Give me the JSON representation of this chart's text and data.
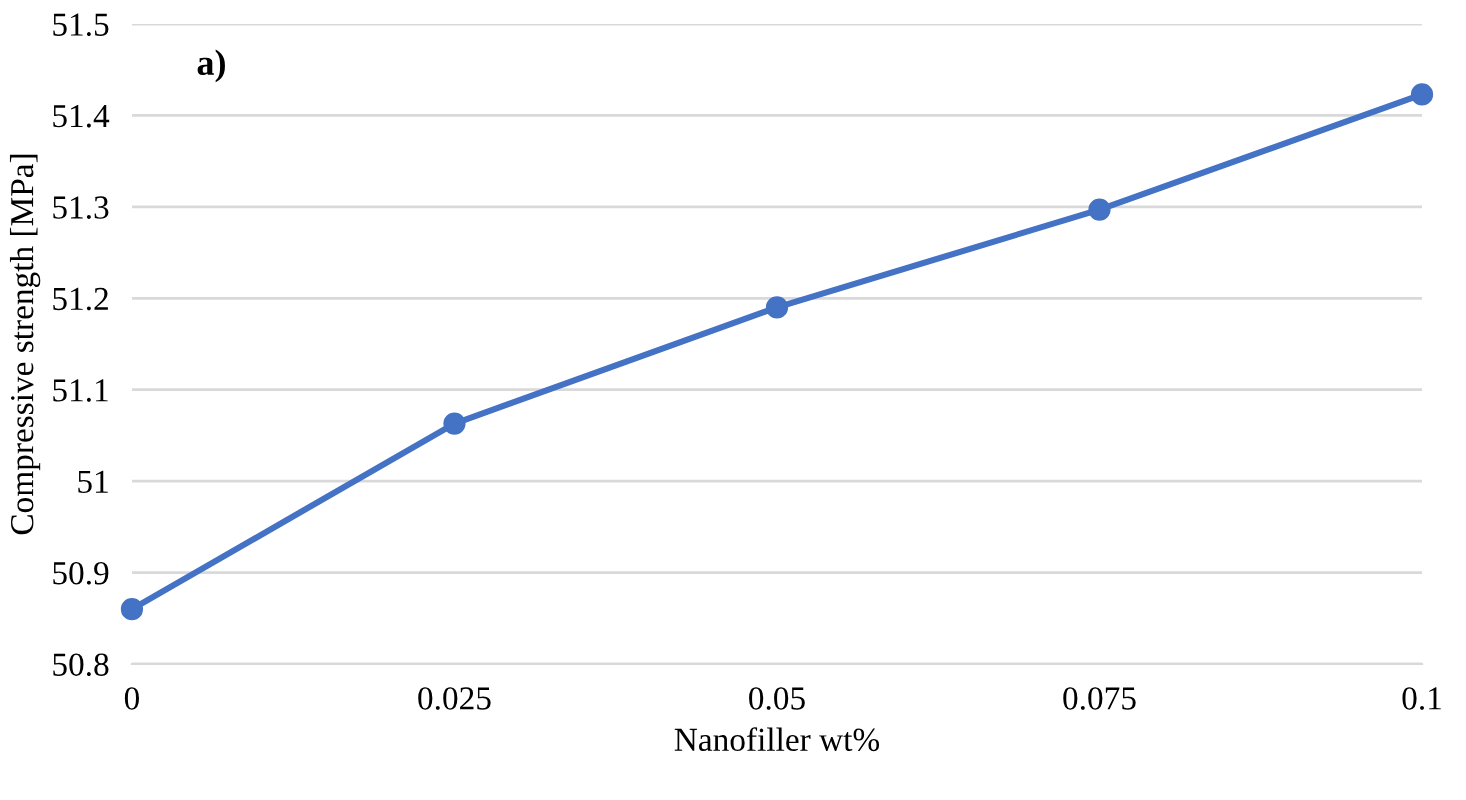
{
  "chart_data": {
    "type": "line",
    "xlabel": "Nanofiller wt%",
    "ylabel": "Compressive strength [MPa]",
    "annotations": [
      "a)"
    ],
    "x": [
      0,
      0.025,
      0.05,
      0.075,
      0.1
    ],
    "series": [
      {
        "color": "#4472c4",
        "values": [
          50.86,
          51.063,
          51.19,
          51.297,
          51.423
        ]
      }
    ],
    "xlim": [
      0,
      0.1
    ],
    "xticks": [
      0,
      0.025,
      0.05,
      0.075,
      0.1
    ],
    "ylim": [
      50.8,
      51.5
    ],
    "yticks": [
      50.8,
      50.9,
      51,
      51.1,
      51.2,
      51.3,
      51.4,
      51.5
    ],
    "grid": "y",
    "marker": "circle",
    "line_style": "solid"
  }
}
